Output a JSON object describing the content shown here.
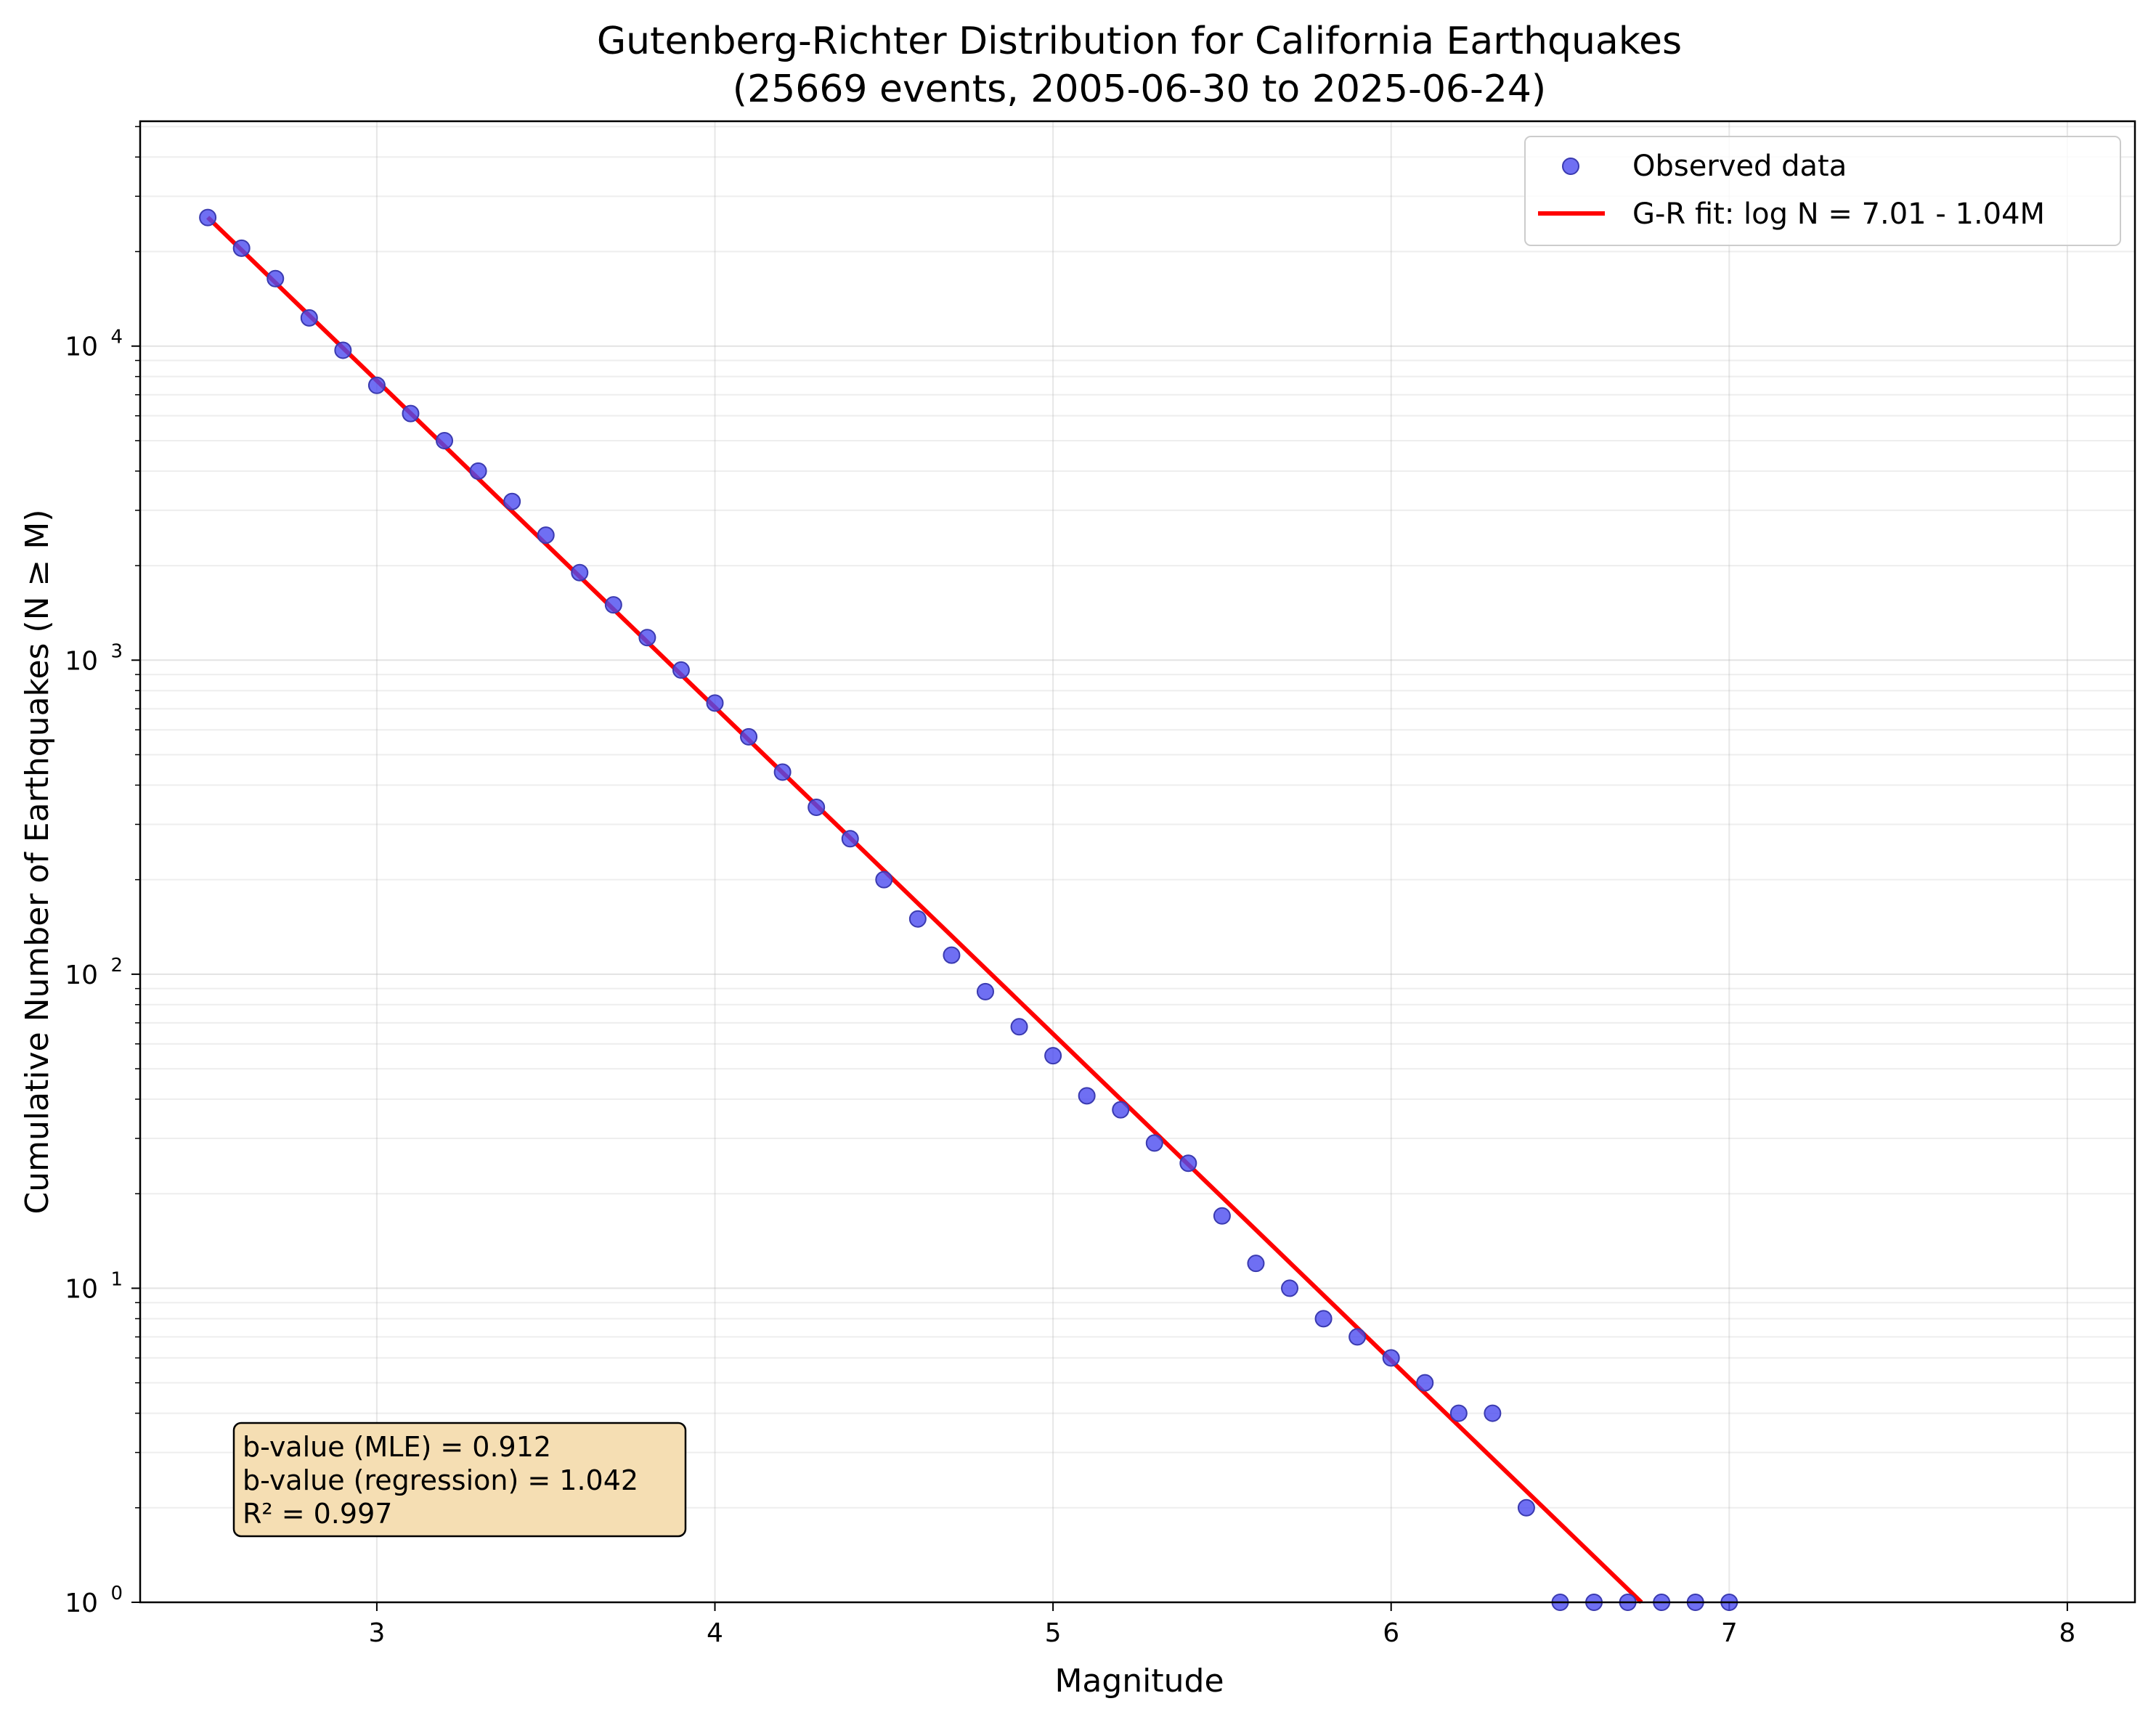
{
  "chart_data": {
    "type": "scatter",
    "title": "Gutenberg-Richter Distribution for California Earthquakes",
    "subtitle": "(25669 events, 2005-06-30 to 2025-06-24)",
    "xlabel": "Magnitude",
    "ylabel": "Cumulative Number of Earthquakes (N ≥ M)",
    "xlim": [
      2.3,
      8.2
    ],
    "ylim": [
      1,
      52000
    ],
    "yscale": "log",
    "grid": true,
    "legend_position": "top-right",
    "x_ticks": [
      {
        "value": 3,
        "label": "3"
      },
      {
        "value": 4,
        "label": "4"
      },
      {
        "value": 5,
        "label": "5"
      },
      {
        "value": 6,
        "label": "6"
      },
      {
        "value": 7,
        "label": "7"
      },
      {
        "value": 8,
        "label": "8"
      }
    ],
    "y_ticks": [
      {
        "value": 1,
        "base": "10",
        "exp": "0"
      },
      {
        "value": 10,
        "base": "10",
        "exp": "1"
      },
      {
        "value": 100,
        "base": "10",
        "exp": "2"
      },
      {
        "value": 1000,
        "base": "10",
        "exp": "3"
      },
      {
        "value": 10000,
        "base": "10",
        "exp": "4"
      }
    ],
    "series": [
      {
        "name": "Observed data",
        "kind": "scatter",
        "color": "#4b4bf0",
        "x": [
          2.5,
          2.6,
          2.7,
          2.8,
          2.9,
          3.0,
          3.1,
          3.2,
          3.3,
          3.4,
          3.5,
          3.6,
          3.7,
          3.8,
          3.9,
          4.0,
          4.1,
          4.2,
          4.3,
          4.4,
          4.5,
          4.6,
          4.7,
          4.8,
          4.9,
          5.0,
          5.1,
          5.2,
          5.3,
          5.4,
          5.5,
          5.6,
          5.7,
          5.8,
          5.9,
          6.0,
          6.1,
          6.2,
          6.3,
          6.4,
          6.5,
          6.6,
          6.7,
          6.8,
          6.9,
          7.0
        ],
        "y": [
          25669,
          20500,
          16400,
          12300,
          9700,
          7500,
          6100,
          5000,
          4000,
          3200,
          2500,
          1900,
          1500,
          1180,
          930,
          730,
          570,
          440,
          340,
          270,
          200,
          150,
          115,
          88,
          68,
          55,
          41,
          37,
          29,
          25,
          17,
          12,
          10,
          8,
          7,
          6,
          5,
          4,
          4,
          2,
          1,
          1,
          1,
          1,
          1,
          1
        ]
      },
      {
        "name": "G-R fit: log N = 7.01 - 1.04M",
        "kind": "line",
        "color": "#ff0000",
        "intercept": 7.01,
        "slope": -1.04,
        "x_range": [
          2.5,
          7.0
        ]
      }
    ],
    "annotation": {
      "lines": [
        "b-value (MLE) = 0.912",
        "b-value (regression) = 1.042",
        "R² = 0.997"
      ],
      "box_fill": "#f5deb3"
    }
  }
}
